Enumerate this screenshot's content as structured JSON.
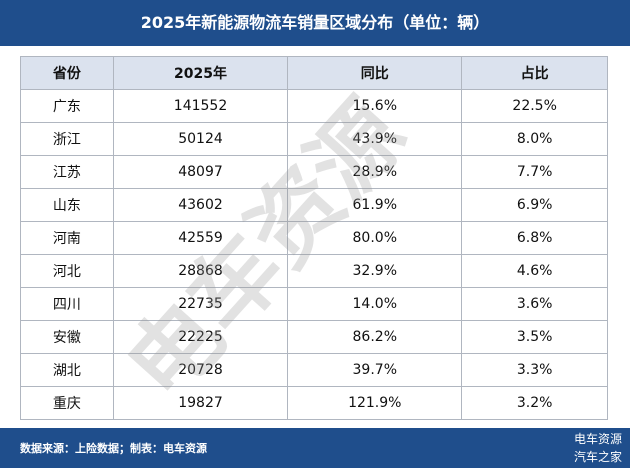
{
  "header": {
    "title": "2025年新能源物流车销量区域分布（单位：辆）"
  },
  "table": {
    "columns": [
      "省份",
      "2025年",
      "同比",
      "占比"
    ],
    "rows": [
      [
        "广东",
        "141552",
        "15.6%",
        "22.5%"
      ],
      [
        "浙江",
        "50124",
        "43.9%",
        "8.0%"
      ],
      [
        "江苏",
        "48097",
        "28.9%",
        "7.7%"
      ],
      [
        "山东",
        "43602",
        "61.9%",
        "6.9%"
      ],
      [
        "河南",
        "42559",
        "80.0%",
        "6.8%"
      ],
      [
        "河北",
        "28868",
        "32.9%",
        "4.6%"
      ],
      [
        "四川",
        "22735",
        "14.0%",
        "3.6%"
      ],
      [
        "安徽",
        "22225",
        "86.2%",
        "3.5%"
      ],
      [
        "湖北",
        "20728",
        "39.7%",
        "3.3%"
      ],
      [
        "重庆",
        "19827",
        "121.9%",
        "3.2%"
      ]
    ]
  },
  "watermark": "电车资源",
  "footer": {
    "source": "数据来源：上险数据；制表：电车资源",
    "logo": [
      "电车资源",
      "汽车之家"
    ]
  }
}
